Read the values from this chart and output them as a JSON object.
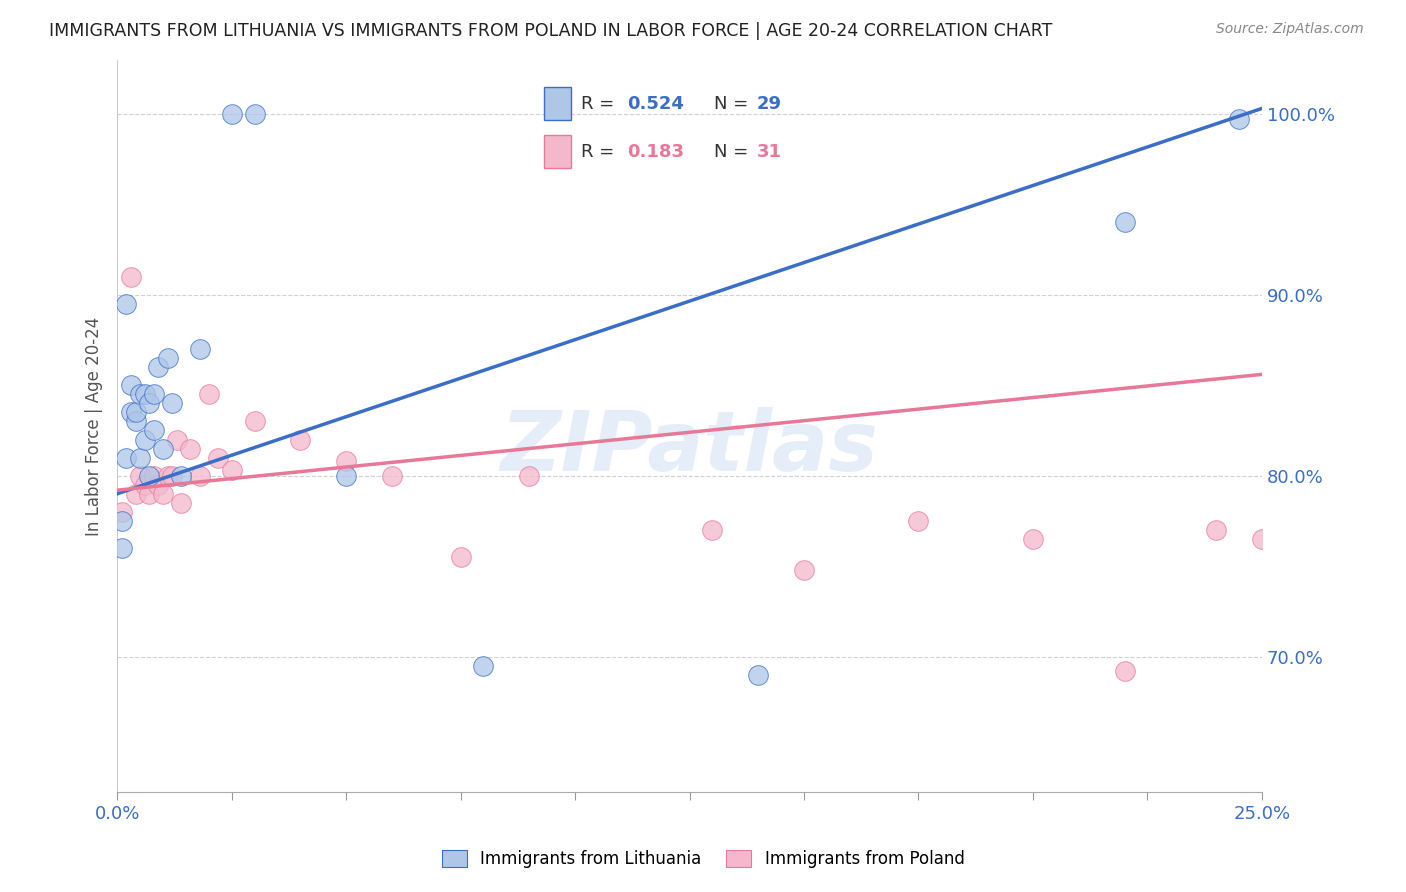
{
  "title": "IMMIGRANTS FROM LITHUANIA VS IMMIGRANTS FROM POLAND IN LABOR FORCE | AGE 20-24 CORRELATION CHART",
  "source": "Source: ZipAtlas.com",
  "ylabel": "In Labor Force | Age 20-24",
  "ytick_labels": [
    "70.0%",
    "80.0%",
    "90.0%",
    "100.0%"
  ],
  "ytick_values": [
    0.7,
    0.8,
    0.9,
    1.0
  ],
  "xlim": [
    0.0,
    0.25
  ],
  "ylim": [
    0.625,
    1.03
  ],
  "watermark": "ZIPatlas",
  "lithuania_R": 0.524,
  "lithuania_N": 29,
  "poland_R": 0.183,
  "poland_N": 31,
  "lithuania_color": "#aec6e8",
  "poland_color": "#f4b8cc",
  "trend_lithuania_color": "#3a6ec8",
  "trend_poland_color": "#e87898",
  "legend_label_lithuania": "Immigrants from Lithuania",
  "legend_label_poland": "Immigrants from Poland",
  "lithuania_x": [
    0.001,
    0.001,
    0.002,
    0.002,
    0.003,
    0.003,
    0.004,
    0.004,
    0.005,
    0.005,
    0.006,
    0.006,
    0.007,
    0.007,
    0.008,
    0.008,
    0.009,
    0.01,
    0.011,
    0.012,
    0.014,
    0.018,
    0.025,
    0.03,
    0.05,
    0.08,
    0.14,
    0.22,
    0.245
  ],
  "lithuania_y": [
    0.775,
    0.76,
    0.895,
    0.81,
    0.835,
    0.85,
    0.83,
    0.835,
    0.845,
    0.81,
    0.845,
    0.82,
    0.84,
    0.8,
    0.845,
    0.825,
    0.86,
    0.815,
    0.865,
    0.84,
    0.8,
    0.87,
    1.0,
    1.0,
    0.8,
    0.695,
    0.69,
    0.94,
    0.997
  ],
  "poland_x": [
    0.001,
    0.003,
    0.004,
    0.005,
    0.006,
    0.007,
    0.008,
    0.009,
    0.01,
    0.011,
    0.012,
    0.013,
    0.014,
    0.016,
    0.018,
    0.02,
    0.022,
    0.025,
    0.03,
    0.04,
    0.05,
    0.06,
    0.075,
    0.09,
    0.13,
    0.15,
    0.175,
    0.2,
    0.22,
    0.24,
    0.25
  ],
  "poland_y": [
    0.78,
    0.91,
    0.79,
    0.8,
    0.795,
    0.79,
    0.8,
    0.795,
    0.79,
    0.8,
    0.8,
    0.82,
    0.785,
    0.815,
    0.8,
    0.845,
    0.81,
    0.803,
    0.83,
    0.82,
    0.808,
    0.8,
    0.755,
    0.8,
    0.77,
    0.748,
    0.775,
    0.765,
    0.692,
    0.77,
    0.765
  ],
  "trend_lith_x0": 0.0,
  "trend_lith_x1": 0.25,
  "trend_lith_y0": 0.79,
  "trend_lith_y1": 1.003,
  "trend_pol_x0": 0.0,
  "trend_pol_x1": 0.25,
  "trend_pol_y0": 0.792,
  "trend_pol_y1": 0.856
}
